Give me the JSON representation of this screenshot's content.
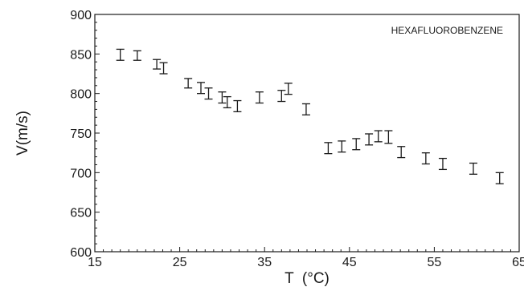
{
  "chart_data": {
    "type": "scatter",
    "annotation": "HEXAFLUOROBENZENE",
    "xlabel": "T  (°C)",
    "ylabel": "V(m/s)",
    "xlim": [
      15,
      65
    ],
    "ylim": [
      600,
      900
    ],
    "xticks": [
      15,
      25,
      35,
      45,
      55,
      65
    ],
    "yticks": [
      600,
      650,
      700,
      750,
      800,
      850,
      900
    ],
    "error_bars": true,
    "grid": false,
    "series": [
      {
        "points": [
          {
            "x": 18.0,
            "y": 849,
            "err": 7
          },
          {
            "x": 20.0,
            "y": 848,
            "err": 6
          },
          {
            "x": 22.3,
            "y": 837,
            "err": 6
          },
          {
            "x": 23.1,
            "y": 832,
            "err": 7
          },
          {
            "x": 26.0,
            "y": 813,
            "err": 6
          },
          {
            "x": 27.5,
            "y": 807,
            "err": 7
          },
          {
            "x": 28.4,
            "y": 800,
            "err": 7
          },
          {
            "x": 30.0,
            "y": 795,
            "err": 7
          },
          {
            "x": 30.6,
            "y": 789,
            "err": 7
          },
          {
            "x": 31.8,
            "y": 784,
            "err": 7
          },
          {
            "x": 34.4,
            "y": 795,
            "err": 7
          },
          {
            "x": 37.0,
            "y": 797,
            "err": 7
          },
          {
            "x": 37.8,
            "y": 806,
            "err": 7
          },
          {
            "x": 39.9,
            "y": 780,
            "err": 7
          },
          {
            "x": 42.5,
            "y": 731,
            "err": 7
          },
          {
            "x": 44.1,
            "y": 733,
            "err": 7
          },
          {
            "x": 45.8,
            "y": 736,
            "err": 7
          },
          {
            "x": 47.3,
            "y": 742,
            "err": 7
          },
          {
            "x": 48.4,
            "y": 746,
            "err": 7
          },
          {
            "x": 49.6,
            "y": 745,
            "err": 8
          },
          {
            "x": 51.1,
            "y": 726,
            "err": 7
          },
          {
            "x": 54.0,
            "y": 718,
            "err": 7
          },
          {
            "x": 56.0,
            "y": 711,
            "err": 7
          },
          {
            "x": 59.6,
            "y": 705,
            "err": 7
          },
          {
            "x": 62.7,
            "y": 693,
            "err": 7
          }
        ]
      }
    ]
  }
}
